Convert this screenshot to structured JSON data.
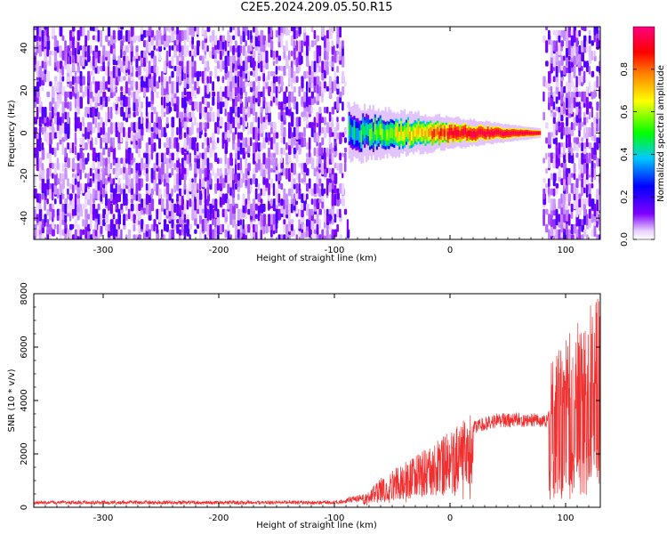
{
  "title": "C2E5.2024.209.05.50.R15",
  "chart_data": [
    {
      "type": "heatmap",
      "xlabel": "Height of straight line (km)",
      "ylabel": "Frequency (Hz)",
      "xlim": [
        -360,
        130
      ],
      "ylim": [
        -50,
        50
      ],
      "xticks": [
        -300,
        -200,
        -100,
        0,
        100
      ],
      "yticks": [
        -40,
        -20,
        0,
        20,
        40
      ],
      "colorbar": {
        "label": "Normalized spectral amplitude",
        "range": [
          0,
          1
        ],
        "ticks": [
          0.0,
          0.2,
          0.4,
          0.6,
          0.8
        ],
        "tick_labels": [
          "0.0",
          "0.2",
          "0.4",
          "0.6",
          "0.8"
        ],
        "colors": [
          "#ffffff",
          "#8000ff",
          "#0000ff",
          "#00c8ff",
          "#00ff00",
          "#ffff00",
          "#ff8000",
          "#ff0000",
          "#ff0080"
        ]
      },
      "regions": [
        {
          "x_range": [
            -360,
            -88
          ],
          "description": "broadband noise",
          "level_range": [
            0.05,
            0.2
          ]
        },
        {
          "x_range": [
            -88,
            78
          ],
          "frequency_center": 0,
          "frequency_halfwidth": [
            6,
            1
          ],
          "level_range": [
            0.3,
            0.95
          ]
        },
        {
          "x_range": [
            78,
            130
          ],
          "description": "broadband noise",
          "level_range": [
            0.05,
            0.2
          ]
        }
      ]
    },
    {
      "type": "line",
      "xlabel": "Height of straight line (km)",
      "ylabel": "SNR (10 * v/v)",
      "xlim": [
        -360,
        130
      ],
      "ylim": [
        0,
        8000
      ],
      "xticks": [
        -300,
        -200,
        -100,
        0,
        100
      ],
      "yticks": [
        0,
        2000,
        4000,
        6000,
        8000
      ],
      "series": [
        {
          "color": "#f03030",
          "envelope": [
            {
              "x": -360,
              "y": 200
            },
            {
              "x": -100,
              "y": 200
            },
            {
              "x": -75,
              "y": 400
            },
            {
              "x": -60,
              "y": 1000
            },
            {
              "x": -40,
              "y": 1500
            },
            {
              "x": -20,
              "y": 2000
            },
            {
              "x": 0,
              "y": 2600
            },
            {
              "x": 20,
              "y": 3200
            },
            {
              "x": 40,
              "y": 3450
            },
            {
              "x": 60,
              "y": 3500
            },
            {
              "x": 85,
              "y": 3450
            },
            {
              "x": 88,
              "y": 5000
            },
            {
              "x": 100,
              "y": 5500
            },
            {
              "x": 120,
              "y": 6500
            },
            {
              "x": 130,
              "y": 7500
            }
          ]
        }
      ]
    }
  ]
}
